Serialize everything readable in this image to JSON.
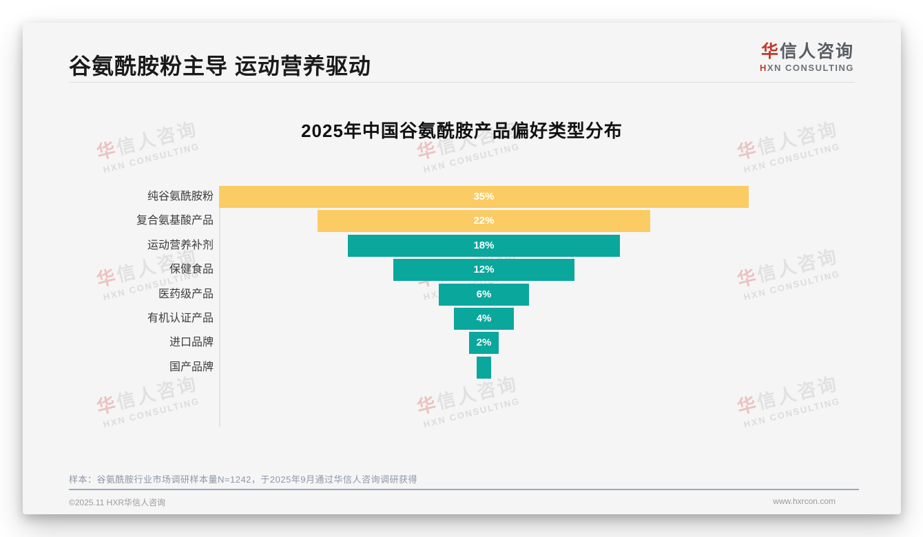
{
  "page": {
    "header": {
      "title": "谷氨酰胺粉主导 运动营养驱动"
    },
    "logo": {
      "zh_accent": "华",
      "zh_rest": "信人咨询",
      "en_accent": "H",
      "en_rest": "XN CONSULTING"
    },
    "watermark": {
      "zh_accent": "华",
      "zh_rest": "信人咨询",
      "en": "HXN CONSULTING"
    },
    "note": "样本：谷氨酰胺行业市场调研样本量N=1242，于2025年9月通过华信人咨询调研获得",
    "footer": {
      "left": "©2025.11 HXR华信人咨询",
      "right": "www.hxrcon.com"
    }
  },
  "chart_data": {
    "type": "bar",
    "subtype": "centered-funnel-horizontal",
    "title": "2025年中国谷氨酰胺产品偏好类型分布",
    "categories": [
      "纯谷氨酰胺粉",
      "复合氨基酸产品",
      "运动营养补剂",
      "保健食品",
      "医药级产品",
      "有机认证产品",
      "进口品牌",
      "国产品牌"
    ],
    "values": [
      35,
      22,
      18,
      12,
      6,
      4,
      2,
      1
    ],
    "data_labels": [
      "35%",
      "22%",
      "18%",
      "12%",
      "6%",
      "4%",
      "2%",
      ""
    ],
    "bar_colors": [
      "#fbcc64",
      "#fbcc64",
      "#0aa79d",
      "#0aa79d",
      "#0aa79d",
      "#0aa79d",
      "#0aa79d",
      "#0aa79d"
    ],
    "unit": "%",
    "xlim": [
      0,
      35
    ],
    "xlabel": "",
    "ylabel": "",
    "grid": false,
    "legend": false,
    "accent_yellow": "#fbcc64",
    "accent_teal": "#0aa79d"
  }
}
